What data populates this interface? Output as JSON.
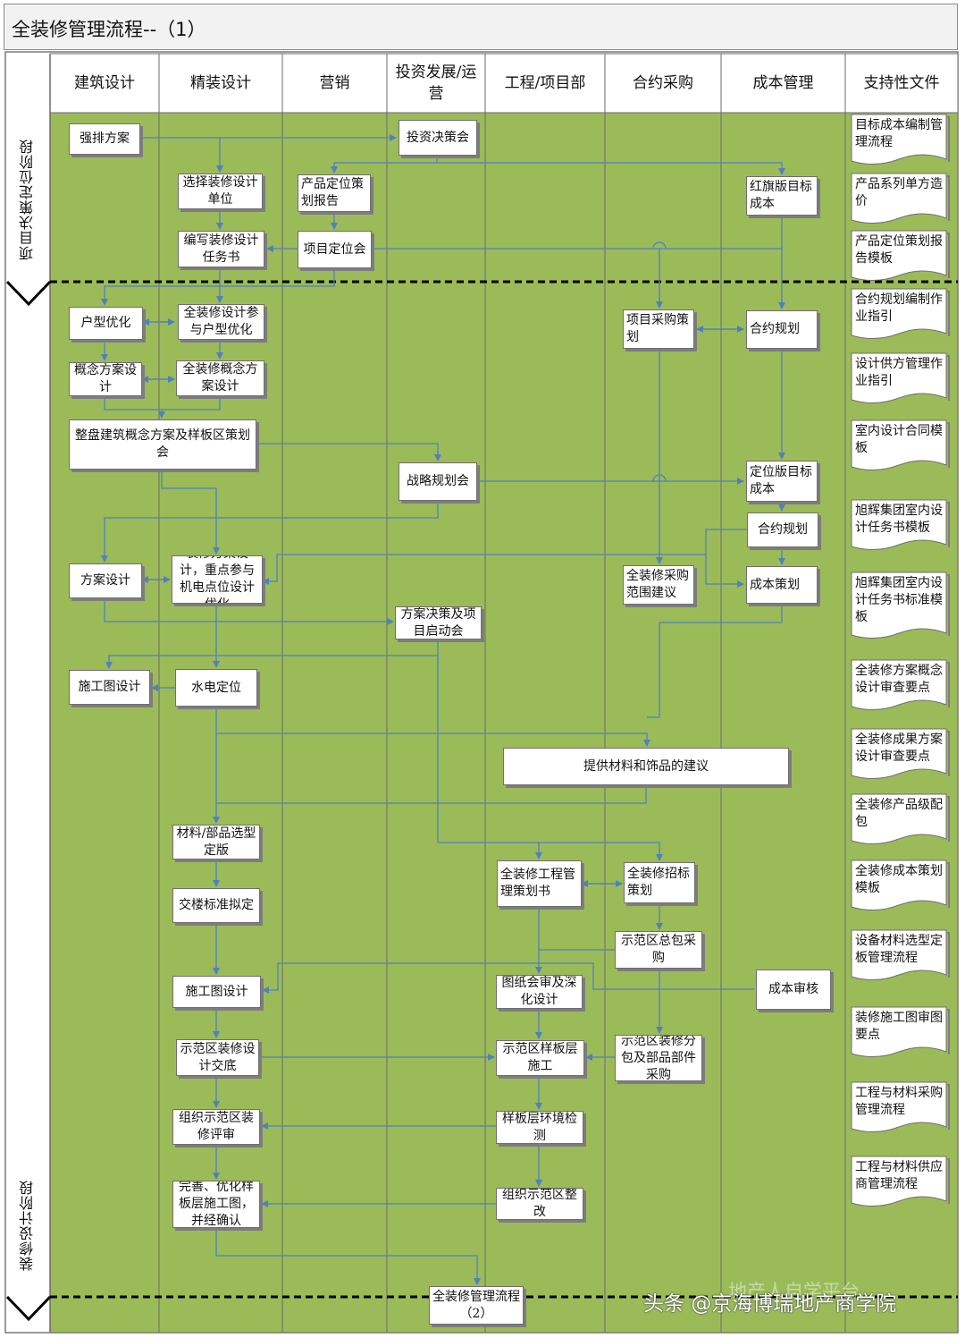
{
  "title": "全装修管理流程--（1）",
  "colors": {
    "lane_fill": "#9bbb59",
    "header_fill": "#ffffff",
    "line": "#4f81bd",
    "grid": "#7a7a7a"
  },
  "phases": {
    "phase1": "项目决策定位阶段",
    "phase2": "装修设计阶段"
  },
  "lanes": {
    "arch": "建筑设计",
    "interior": "精装设计",
    "marketing": "营销",
    "invest": "投资发展/运营",
    "engineering": "工程/项目部",
    "procurement": "合约采购",
    "cost": "成本管理",
    "docs": "支持性文件"
  },
  "nodes": {
    "qiangpai": "强排方案",
    "touzi_juece": "投资决策会",
    "xuanze_danwei": "选择装修设计单位",
    "chanpin_baogao": "产品定位策划报告",
    "hongqi_chengben": "红旗版目标成本",
    "bianxie_renwu": "编写装修设计任务书",
    "xiangmu_dingwei": "项目定位会",
    "huxing": "户型优化",
    "canyu_huxing": "全装修设计参与户型优化",
    "caigou_cehua": "项目采购策划",
    "heyue_guihua1": "合约规划",
    "gainian_arch": "概念方案设计",
    "gainian_interior": "全装修概念方案设计",
    "zhengpan": "整盘建筑概念方案及样板区策划会",
    "zhanlue": "战略规划会",
    "dingwei_chengben": "定位版目标成本",
    "heyue_guihua2": "合约规划",
    "fangan_arch": "方案设计",
    "zhuangxiu_fangan": "装修方案设计，重点参与机电点位设计优化",
    "caigou_fanwei": "全装修采购范围建议",
    "chengben_cehua": "成本策划",
    "fangan_juece": "方案决策及项目启动会",
    "shigongtu_arch": "施工图设计",
    "shuidian": "水电定位",
    "cailiao_jianyi": "提供材料和饰品的建议",
    "cailiao_xuanxing": "材料/部品选型定版",
    "gongcheng_cehua": "全装修工程管理策划书",
    "zhaobiao_cehua": "全装修招标策划",
    "jiaolou": "交楼标准拟定",
    "shifan_zongbao": "示范区总包采购",
    "chengben_shenhe": "成本审核",
    "shigongtu_interior": "施工图设计",
    "tuzhi_huishen": "图纸会审及深化设计",
    "sheji_jiaodi": "示范区装修设计交底",
    "yangbanceng_shigong": "示范区样板层施工",
    "fenbao_caigou": "示范区装修分包及部品部件采购",
    "pingshen": "组织示范区装修评审",
    "huanjing_jiance": "样板层环境检测",
    "wanshan": "完善、优化样板层施工图，并经确认",
    "zhenggai": "组织示范区整改",
    "liucheng2": "全装修管理流程（2）"
  },
  "docs": [
    "目标成本编制管理流程",
    "产品系列单方造价",
    "产品定位策划报告模板",
    "合约规划编制作业指引",
    "设计供方管理作业指引",
    "室内设计合同模板",
    "旭辉集团室内设计任务书模板",
    "旭辉集团室内设计任务书标准模板",
    "全装修方案概念设计审查要点",
    "全装修成果方案设计审查要点",
    "全装修产品级配包",
    "全装修成本策划模板",
    "设备材料选型定板管理流程",
    "装修施工图审图要点",
    "工程与材料采购管理流程",
    "工程与材料供应商管理流程"
  ],
  "watermark": {
    "main": "头条 @京海博瑞地产商学院",
    "faded": "地产人自学平台"
  }
}
